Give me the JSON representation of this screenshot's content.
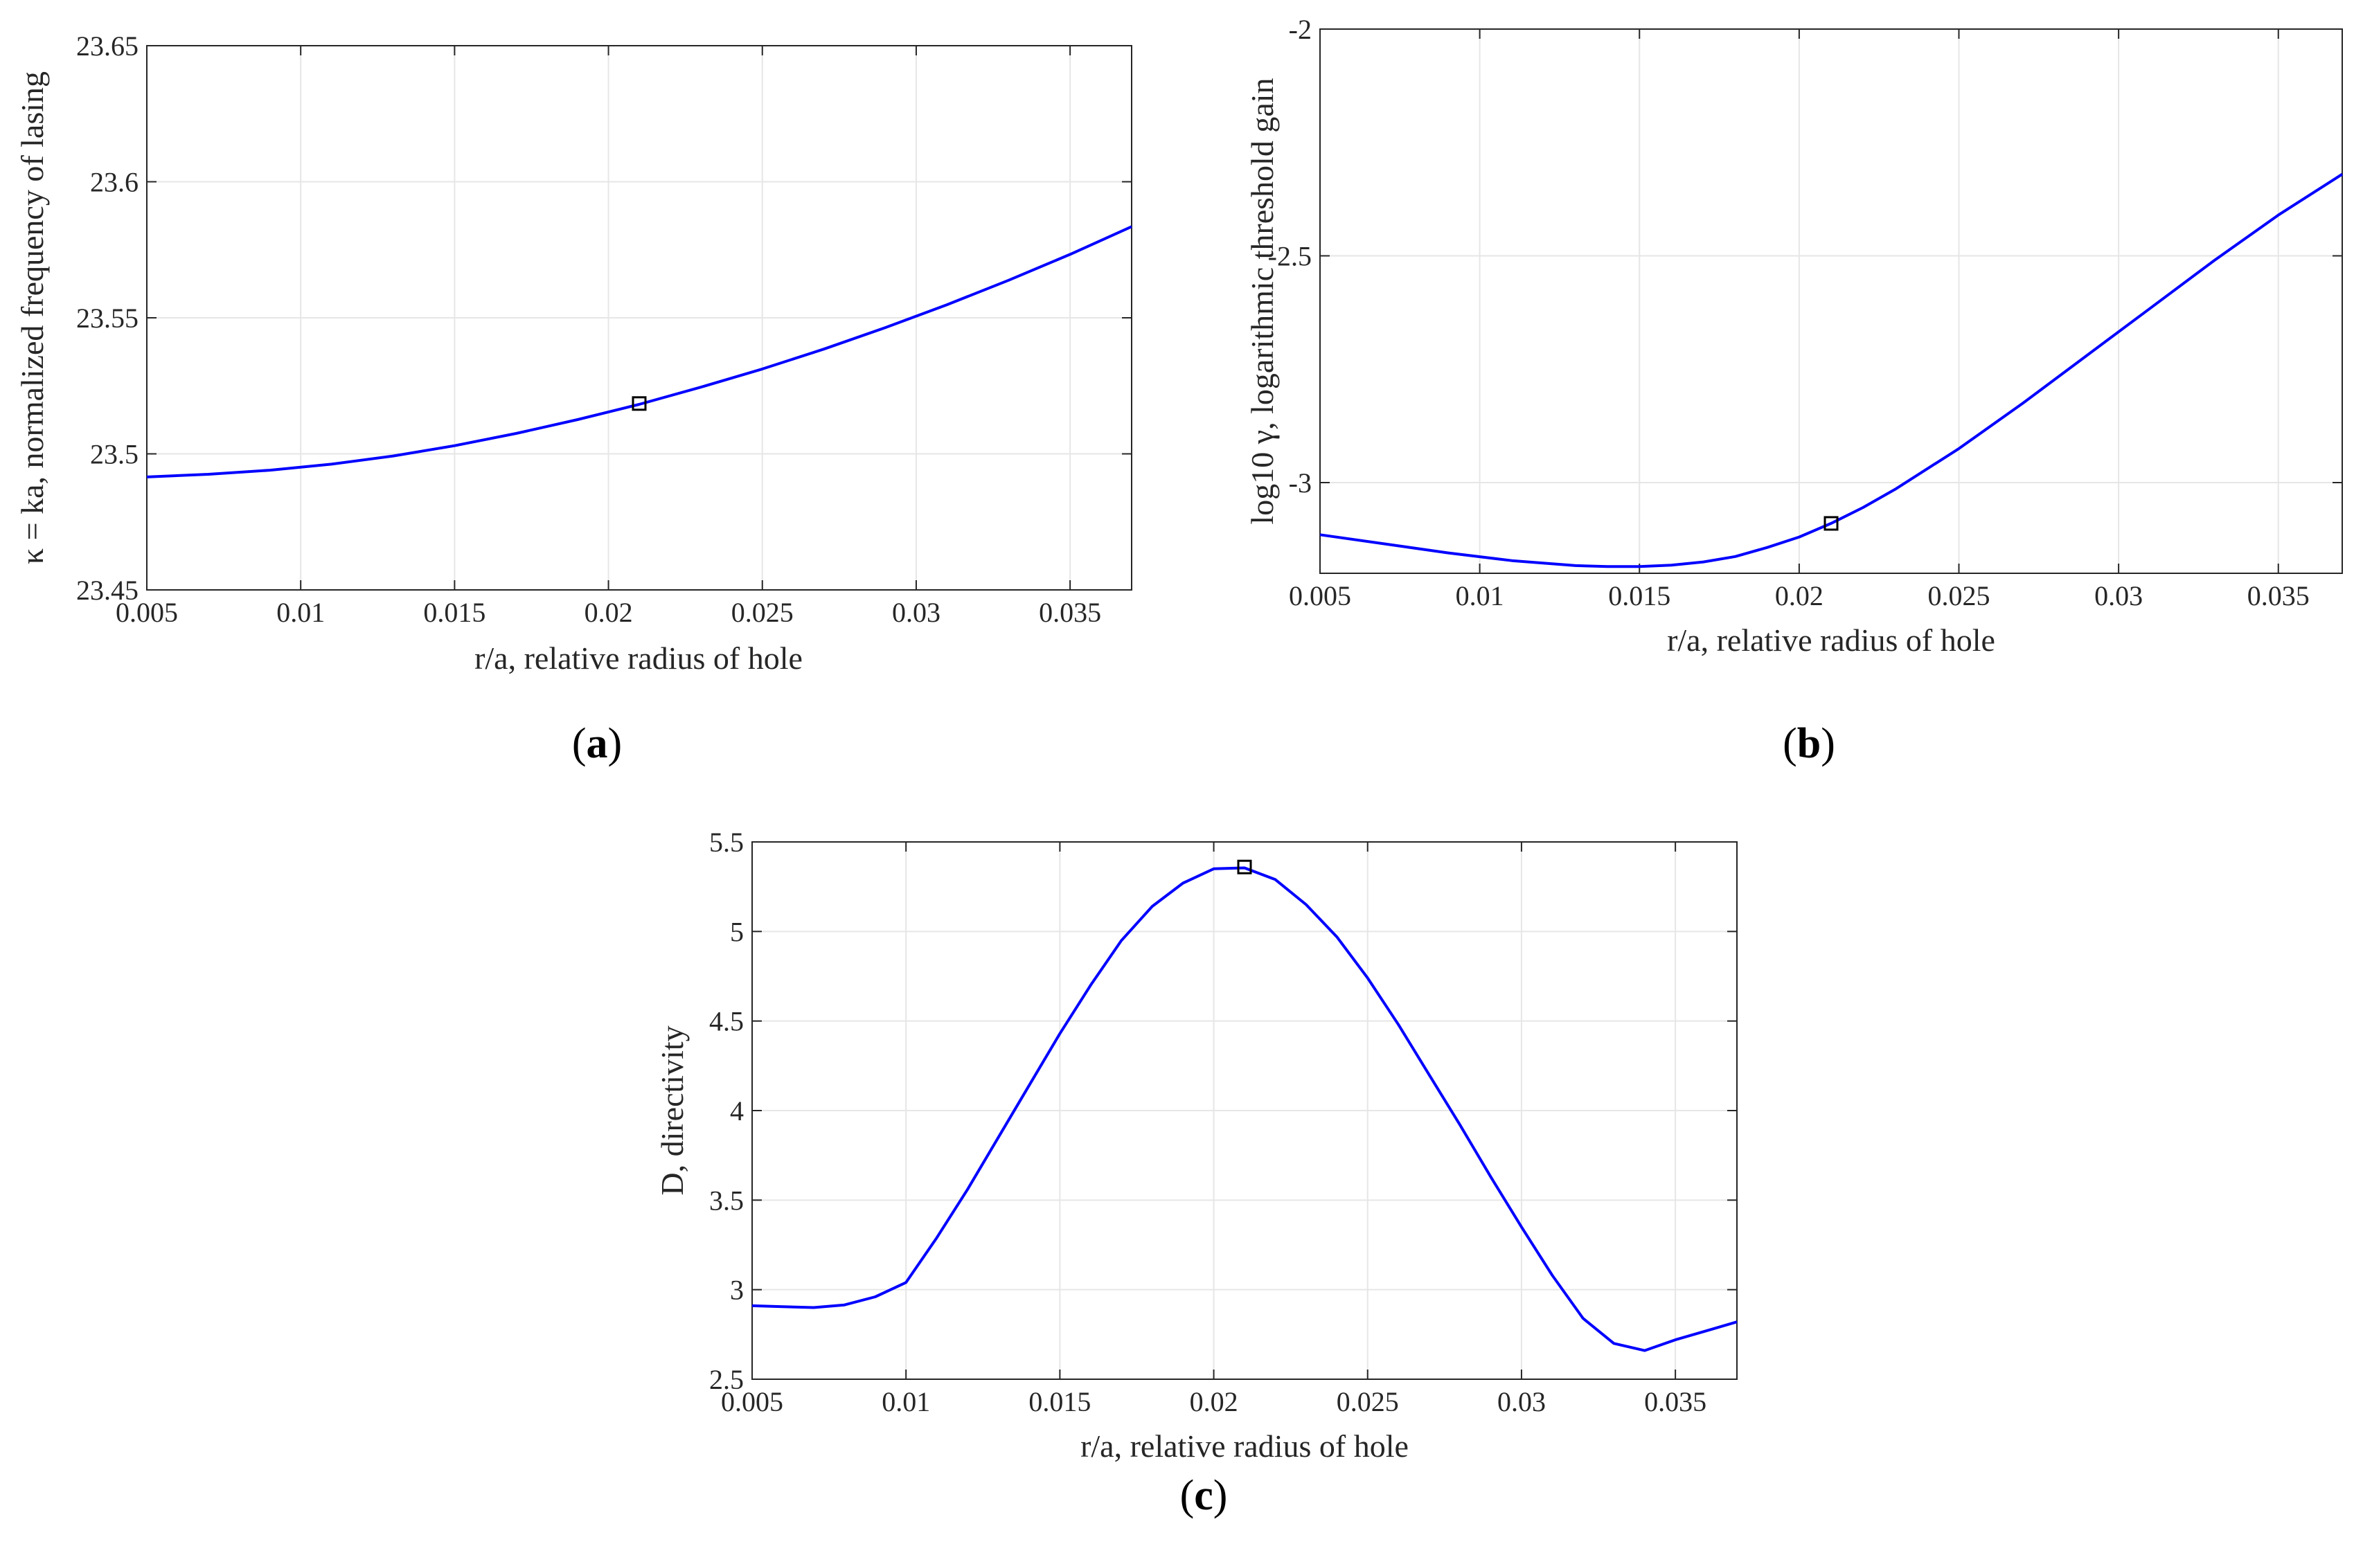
{
  "chart_data": [
    {
      "id": "a",
      "type": "line",
      "panel_label": "a",
      "xlabel": "r/a, relative radius of hole",
      "ylabel": "κ = ka, normalized frequency of lasing",
      "xlim": [
        0.005,
        0.037
      ],
      "ylim": [
        23.45,
        23.65
      ],
      "xticks": [
        0.005,
        0.01,
        0.015,
        0.02,
        0.025,
        0.03,
        0.035
      ],
      "xtick_labels": [
        "0.005",
        "0.01",
        "0.015",
        "0.02",
        "0.025",
        "0.03",
        "0.035"
      ],
      "yticks": [
        23.45,
        23.5,
        23.55,
        23.6,
        23.65
      ],
      "ytick_labels": [
        "23.45",
        "23.5",
        "23.55",
        "23.6",
        "23.65"
      ],
      "grid": true,
      "series": [
        {
          "name": "kappa",
          "color": "#0000ff",
          "x": [
            0.005,
            0.007,
            0.009,
            0.011,
            0.013,
            0.015,
            0.017,
            0.019,
            0.021,
            0.023,
            0.025,
            0.027,
            0.029,
            0.031,
            0.033,
            0.035,
            0.037
          ],
          "y": [
            23.4915,
            23.4925,
            23.494,
            23.4962,
            23.4992,
            23.503,
            23.5075,
            23.5126,
            23.5182,
            23.5245,
            23.5312,
            23.5385,
            23.5464,
            23.5548,
            23.5638,
            23.5733,
            23.5835
          ]
        }
      ],
      "marker": {
        "x": 0.021,
        "y": 23.5185
      }
    },
    {
      "id": "b",
      "type": "line",
      "panel_label": "b",
      "xlabel": "r/a, relative radius of hole",
      "ylabel": "log10 γ, logarithmic threshold gain",
      "xlim": [
        0.005,
        0.037
      ],
      "ylim": [
        -3.2,
        -2.0
      ],
      "xticks": [
        0.005,
        0.01,
        0.015,
        0.02,
        0.025,
        0.03,
        0.035
      ],
      "xtick_labels": [
        "0.005",
        "0.01",
        "0.015",
        "0.02",
        "0.025",
        "0.03",
        "0.035"
      ],
      "yticks": [
        -3.0,
        -2.5,
        -2.0
      ],
      "ytick_labels": [
        "-3",
        "-2.5",
        "-2"
      ],
      "grid": true,
      "series": [
        {
          "name": "log threshold gain",
          "color": "#0000ff",
          "x": [
            0.005,
            0.007,
            0.009,
            0.011,
            0.013,
            0.014,
            0.015,
            0.016,
            0.017,
            0.018,
            0.019,
            0.02,
            0.021,
            0.022,
            0.023,
            0.025,
            0.027,
            0.029,
            0.031,
            0.033,
            0.035,
            0.037
          ],
          "y": [
            -3.115,
            -3.135,
            -3.155,
            -3.172,
            -3.183,
            -3.185,
            -3.185,
            -3.182,
            -3.175,
            -3.163,
            -3.143,
            -3.12,
            -3.09,
            -3.055,
            -3.015,
            -2.925,
            -2.825,
            -2.72,
            -2.615,
            -2.51,
            -2.41,
            -2.32
          ]
        }
      ],
      "marker": {
        "x": 0.021,
        "y": -3.09
      }
    },
    {
      "id": "c",
      "type": "line",
      "panel_label": "c",
      "xlabel": "r/a, relative radius of hole",
      "ylabel": "D, directivity",
      "xlim": [
        0.005,
        0.037
      ],
      "ylim": [
        2.5,
        5.5
      ],
      "xticks": [
        0.005,
        0.01,
        0.015,
        0.02,
        0.025,
        0.03,
        0.035
      ],
      "xtick_labels": [
        "0.005",
        "0.01",
        "0.015",
        "0.02",
        "0.025",
        "0.03",
        "0.035"
      ],
      "yticks": [
        2.5,
        3.0,
        3.5,
        4.0,
        4.5,
        5.0,
        5.5
      ],
      "ytick_labels": [
        "2.5",
        "3",
        "3.5",
        "4",
        "4.5",
        "5",
        "5.5"
      ],
      "grid": true,
      "series": [
        {
          "name": "directivity",
          "color": "#0000ff",
          "x": [
            0.005,
            0.006,
            0.007,
            0.008,
            0.009,
            0.01,
            0.011,
            0.012,
            0.013,
            0.014,
            0.015,
            0.016,
            0.017,
            0.018,
            0.019,
            0.02,
            0.021,
            0.022,
            0.023,
            0.024,
            0.025,
            0.026,
            0.027,
            0.028,
            0.029,
            0.03,
            0.031,
            0.032,
            0.033,
            0.034,
            0.035,
            0.036,
            0.037
          ],
          "y": [
            2.91,
            2.905,
            2.9,
            2.915,
            2.96,
            3.04,
            3.29,
            3.56,
            3.85,
            4.14,
            4.43,
            4.7,
            4.95,
            5.14,
            5.27,
            5.35,
            5.355,
            5.29,
            5.15,
            4.97,
            4.74,
            4.48,
            4.2,
            3.92,
            3.63,
            3.35,
            3.08,
            2.84,
            2.7,
            2.66,
            2.72,
            2.77,
            2.82
          ]
        }
      ],
      "marker": {
        "x": 0.021,
        "y": 5.36
      }
    }
  ],
  "colors": {
    "series": "#0000ff",
    "axes": "#262626",
    "grid": "#e6e6e6",
    "marker": "#000000"
  }
}
